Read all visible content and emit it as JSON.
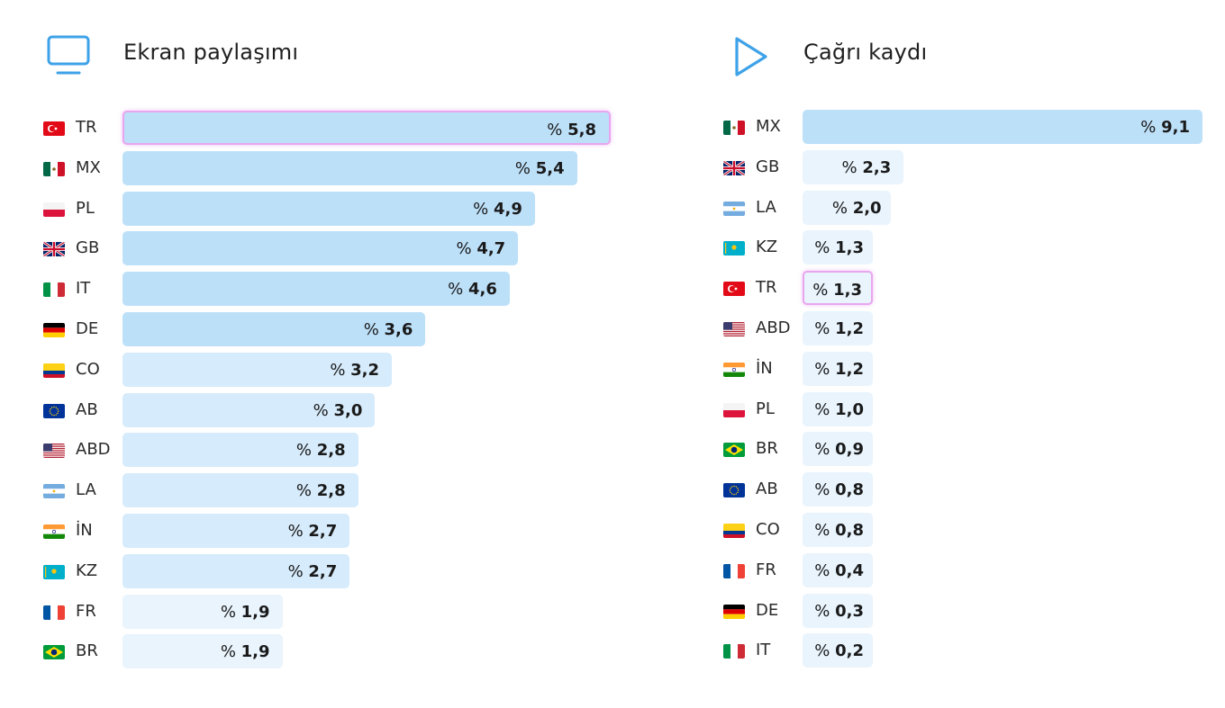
{
  "colors": {
    "strong": "#bde0f9",
    "medium": "#d6ebfb",
    "light": "#e9f4fd",
    "highlight": "#e8a6ef",
    "icon": "#3ea2e8"
  },
  "percent_sign": "%",
  "chart_data": [
    {
      "type": "bar",
      "orientation": "horizontal",
      "title": "Ekran paylaşımı",
      "icon": "monitor-icon",
      "categories": [
        "TR",
        "MX",
        "PL",
        "GB",
        "IT",
        "DE",
        "CO",
        "AB",
        "ABD",
        "LA",
        "İN",
        "KZ",
        "FR",
        "BR"
      ],
      "values": [
        5.8,
        5.4,
        4.9,
        4.7,
        4.6,
        3.6,
        3.2,
        3.0,
        2.8,
        2.8,
        2.7,
        2.7,
        1.9,
        1.9
      ],
      "labels": [
        "5,8",
        "5,4",
        "4,9",
        "4,7",
        "4,6",
        "3,6",
        "3,2",
        "3,0",
        "2,8",
        "2,8",
        "2,7",
        "2,7",
        "1,9",
        "1,9"
      ],
      "flags": [
        "tr",
        "mx",
        "pl",
        "gb",
        "it",
        "de",
        "co",
        "eu",
        "us",
        "ar",
        "in",
        "kz",
        "fr",
        "br"
      ],
      "highlight": "TR",
      "xlim": [
        0,
        5.8
      ]
    },
    {
      "type": "bar",
      "orientation": "horizontal",
      "title": "Çağrı kaydı",
      "icon": "play-icon",
      "categories": [
        "MX",
        "GB",
        "LA",
        "KZ",
        "TR",
        "ABD",
        "İN",
        "PL",
        "BR",
        "AB",
        "CO",
        "FR",
        "DE",
        "IT"
      ],
      "values": [
        9.1,
        2.3,
        2.0,
        1.3,
        1.3,
        1.2,
        1.2,
        1.0,
        0.9,
        0.8,
        0.8,
        0.4,
        0.3,
        0.2
      ],
      "labels": [
        "9,1",
        "2,3",
        "2,0",
        "1,3",
        "1,3",
        "1,2",
        "1,2",
        "1,0",
        "0,9",
        "0,8",
        "0,8",
        "0,4",
        "0,3",
        "0,2"
      ],
      "flags": [
        "mx",
        "gb",
        "ar",
        "kz",
        "tr",
        "us",
        "in",
        "pl",
        "br",
        "eu",
        "co",
        "fr",
        "de",
        "it"
      ],
      "highlight": "TR",
      "xlim": [
        0,
        9.1
      ]
    }
  ]
}
